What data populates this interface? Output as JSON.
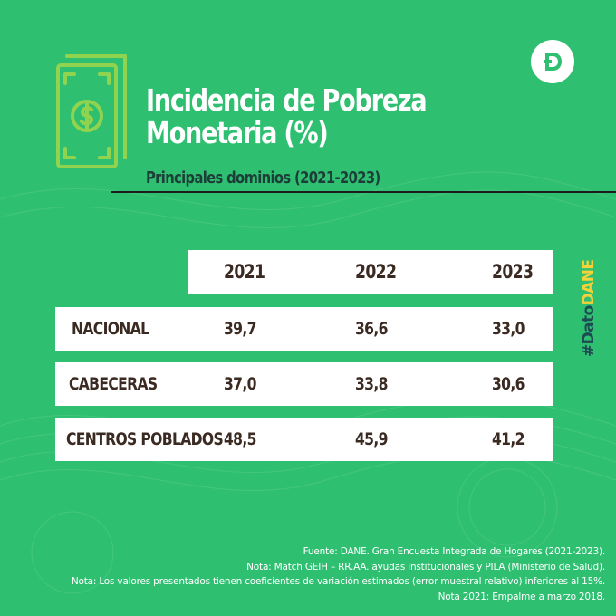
{
  "page": {
    "title_line1": "Incidencia de Pobreza",
    "title_line2": "Monetaria (%)",
    "subtitle": "Principales dominios (2021-2023)",
    "logo_icon": "dane-d-logo-icon",
    "side_tag": {
      "hash": "#",
      "dato": "Dato",
      "dane": "DANE"
    },
    "notes": [
      "Fuente: DANE. Gran Encuesta Integrada de Hogares (2021-2023).",
      "Nota: Match GEIH – RR.AA. ayudas institucionales y PILA (Ministerio de Salud).",
      "Nota: Los valores presentados tienen coeficientes de variación estimados (error muestral relativo) inferiores al 15%.",
      "Nota 2021: Empalme a marzo 2018."
    ],
    "colors": {
      "background": "#2fbf71",
      "title": "#ffffff",
      "subtitle": "#1c3d38",
      "table_text": "#3a2a22",
      "accent_yellow": "#f3d23a",
      "money_icon": "#8fd34f"
    }
  },
  "chart_data": {
    "type": "table",
    "title": "Incidencia de Pobreza Monetaria (%)",
    "subtitle": "Principales dominios (2021-2023)",
    "columns": [
      "2021",
      "2022",
      "2023"
    ],
    "rows": [
      {
        "label": "NACIONAL",
        "values": [
          "39,7",
          "36,6",
          "33,0"
        ]
      },
      {
        "label": "CABECERAS",
        "values": [
          "37,0",
          "33,8",
          "30,6"
        ]
      },
      {
        "label": "CENTROS POBLADOS",
        "values": [
          "48,5",
          "45,9",
          "41,2"
        ]
      }
    ]
  }
}
